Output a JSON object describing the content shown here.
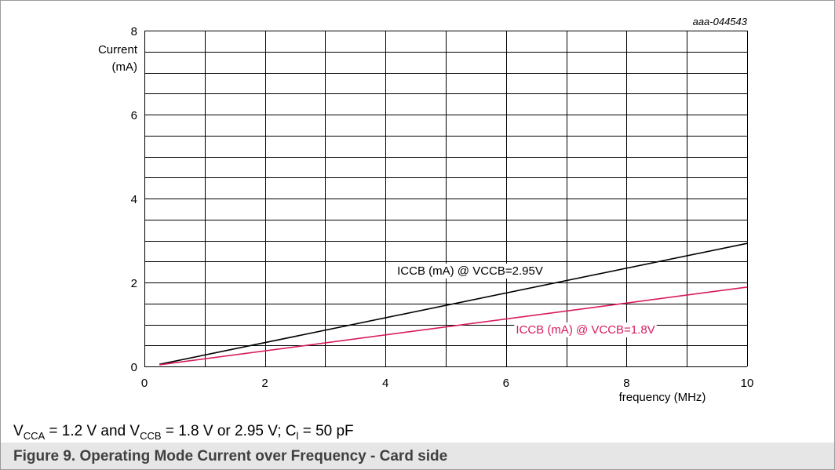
{
  "figure_id": "aaa-044543",
  "conditions": {
    "v_cca_sub": "CCA",
    "v_cca_text": " = 1.2 V and V",
    "v_ccb_sub": "CCB",
    "v_ccb_text": " = 1.8 V or 2.95 V; C",
    "c_sub": "l",
    "c_text": " = 50 pF"
  },
  "figure_title": "Figure 9.  Operating Mode Current over Frequency - Card side",
  "chart_data": {
    "type": "line",
    "title": "",
    "xlabel": "frequency (MHz)",
    "ylabel_line1": "Current",
    "ylabel_line2": "(mA)",
    "xlim": [
      0,
      10
    ],
    "ylim": [
      0,
      8
    ],
    "x_ticks": [
      0,
      2,
      4,
      6,
      8,
      10
    ],
    "y_ticks": [
      0,
      2,
      4,
      6,
      8
    ],
    "x_minor_step": 1,
    "y_minor_step": 0.5,
    "grid": true,
    "series": [
      {
        "name": "ICCB (mA) @ VCCB=2.95V",
        "color": "#000000",
        "x": [
          0.25,
          10
        ],
        "y": [
          0.05,
          2.93
        ]
      },
      {
        "name": "ICCB (mA) @ VCCB=1.8V",
        "color": "#d81b60",
        "x": [
          0.25,
          10
        ],
        "y": [
          0.04,
          1.89
        ]
      }
    ]
  }
}
